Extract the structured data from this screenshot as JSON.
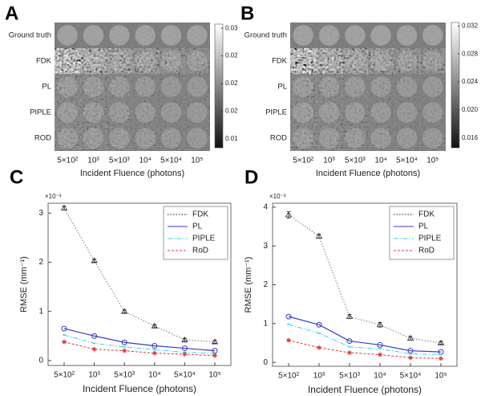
{
  "chart_data": [
    {
      "type": "image_grid",
      "panel": "A",
      "row_labels": [
        "Ground truth",
        "FDK",
        "PL",
        "PIPLE",
        "ROD"
      ],
      "categories": [
        "5×10²",
        "10³",
        "5×10³",
        "10⁴",
        "5×10⁴",
        "10⁵"
      ],
      "xlabel": "Incident Fluence (photons)",
      "clim": [
        0.0107,
        0.0286
      ],
      "cticks": [
        {
          "value": 0.028,
          "label": "0.03"
        },
        {
          "value": 0.024,
          "label": "0.02"
        },
        {
          "value": 0.02,
          "label": "0.02"
        },
        {
          "value": 0.016,
          "label": "0.02"
        },
        {
          "value": 0.012,
          "label": "0.01"
        }
      ]
    },
    {
      "type": "image_grid",
      "panel": "B",
      "row_labels": [
        "Ground truth",
        "FDK",
        "PL",
        "PIPLE",
        "ROD"
      ],
      "categories": [
        "5×10²",
        "10³",
        "5×10³",
        "10⁴",
        "5×10⁴",
        "10⁵"
      ],
      "xlabel": "Incident Fluence (photons)",
      "clim": [
        0.0146,
        0.0325
      ],
      "cticks": [
        {
          "value": 0.032,
          "label": "0.032"
        },
        {
          "value": 0.028,
          "label": "0.028"
        },
        {
          "value": 0.024,
          "label": "0.024"
        },
        {
          "value": 0.02,
          "label": "0.020"
        },
        {
          "value": 0.016,
          "label": "0.016"
        }
      ]
    },
    {
      "type": "line",
      "panel": "C",
      "categories": [
        "5×10²",
        "10³",
        "5×10³",
        "10⁴",
        "5×10⁴",
        "10⁵"
      ],
      "xlabel": "Incident Fluence (photons)",
      "ylabel": "RMSE (mm⁻¹)",
      "y_multiplier": "×10⁻³",
      "ylim": [
        -0.1,
        3.2
      ],
      "yticks": [
        0,
        1,
        2,
        3
      ],
      "legend": "upper right",
      "series": [
        {
          "name": "FDK",
          "color": "#7a7a7a",
          "values": [
            3.1,
            2.03,
            1.0,
            0.7,
            0.42,
            0.38
          ],
          "errors": [
            0.04,
            0.03,
            0.03,
            0.03,
            0.03,
            0.03
          ]
        },
        {
          "name": "PL",
          "color": "#3a3ac8",
          "values": [
            0.65,
            0.5,
            0.37,
            0.3,
            0.25,
            0.2
          ]
        },
        {
          "name": "PIPLE",
          "color": "#35d8ea",
          "values": [
            0.52,
            0.35,
            0.28,
            0.22,
            0.17,
            0.14
          ]
        },
        {
          "name": "RoD",
          "color": "#e03a3a",
          "values": [
            0.38,
            0.23,
            0.2,
            0.15,
            0.13,
            0.1
          ]
        }
      ]
    },
    {
      "type": "line",
      "panel": "D",
      "categories": [
        "5×10²",
        "10³",
        "5×10³",
        "10⁴",
        "5×10⁴",
        "10⁵"
      ],
      "xlabel": "Incident Fluence (photons)",
      "ylabel": "RMSE (mm⁻¹)",
      "y_multiplier": "×10⁻³",
      "ylim": [
        -0.1,
        4.1
      ],
      "yticks": [
        0,
        1,
        2,
        3,
        4
      ],
      "legend": "upper right",
      "series": [
        {
          "name": "FDK",
          "color": "#7a7a7a",
          "values": [
            3.8,
            3.25,
            1.18,
            0.97,
            0.62,
            0.5
          ],
          "errors": [
            0.08,
            0.05,
            0.05,
            0.06,
            0.05,
            0.04
          ]
        },
        {
          "name": "PL",
          "color": "#3a3ac8",
          "values": [
            1.18,
            0.97,
            0.55,
            0.45,
            0.3,
            0.27
          ]
        },
        {
          "name": "PIPLE",
          "color": "#35d8ea",
          "values": [
            0.98,
            0.75,
            0.4,
            0.35,
            0.22,
            0.2
          ]
        },
        {
          "name": "RoD",
          "color": "#e03a3a",
          "values": [
            0.57,
            0.38,
            0.25,
            0.2,
            0.12,
            0.1
          ]
        }
      ]
    }
  ]
}
